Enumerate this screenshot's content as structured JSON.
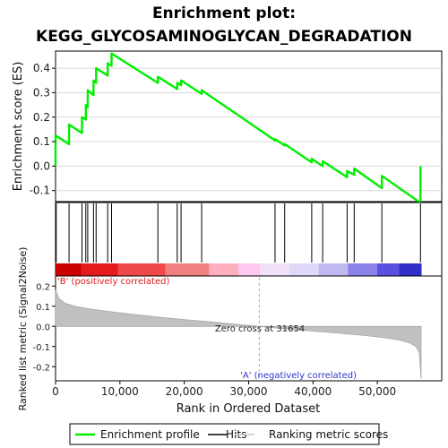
{
  "chart_data": {
    "type": "line",
    "title_line1": "Enrichment plot:",
    "title_line2": "KEGG_GLYCOSAMINOGLYCAN_DEGRADATION",
    "top_panel": {
      "ylabel": "Enrichment score (ES)",
      "ylim": [
        -0.145,
        0.47
      ],
      "y_ticks": [
        -0.1,
        0.0,
        0.1,
        0.2,
        0.3,
        0.4
      ],
      "y_tick_labels": [
        "-0.1",
        "0.0",
        "0.1",
        "0.2",
        "0.3",
        "0.4"
      ],
      "series": [
        {
          "name": "Enrichment profile",
          "color": "#00ee00",
          "x": [
            0,
            1,
            2100,
            2101,
            4100,
            4101,
            4700,
            4701,
            5000,
            5001,
            5900,
            5901,
            6300,
            6301,
            8100,
            8101,
            8700,
            8701,
            15900,
            15901,
            18900,
            18901,
            19500,
            19501,
            22700,
            22701,
            34100,
            34101,
            35600,
            35601,
            39800,
            39801,
            41500,
            41501,
            45300,
            45301,
            46400,
            46401,
            50700,
            50701,
            56700,
            56701
          ],
          "y": [
            0.0,
            0.125,
            0.09,
            0.17,
            0.135,
            0.2,
            0.19,
            0.25,
            0.24,
            0.31,
            0.29,
            0.35,
            0.34,
            0.4,
            0.37,
            0.42,
            0.41,
            0.46,
            0.34,
            0.365,
            0.315,
            0.34,
            0.33,
            0.35,
            0.295,
            0.31,
            0.105,
            0.11,
            0.085,
            0.09,
            0.015,
            0.03,
            0.0,
            0.02,
            -0.045,
            -0.02,
            -0.035,
            -0.01,
            -0.09,
            -0.04,
            -0.15,
            0.0
          ]
        }
      ],
      "hits": [
        100,
        2100,
        4100,
        4700,
        5000,
        5900,
        6300,
        8100,
        8700,
        15900,
        18900,
        19500,
        22700,
        34100,
        35600,
        39800,
        41500,
        45300,
        46400,
        50700,
        56700
      ]
    },
    "bottom_panel": {
      "ylabel_line1": "Ranked list metric (Signal2Noise)",
      "ylim": [
        -0.27,
        0.25
      ],
      "y_ticks": [
        -0.2,
        -0.1,
        0.0,
        0.1,
        0.2
      ],
      "y_tick_labels": [
        "-0.2",
        "-0.1",
        "0.0",
        "0.1",
        "0.2"
      ],
      "xlabel": "Rank in Ordered Dataset",
      "xlim": [
        0,
        60000
      ],
      "x_ticks": [
        0,
        10000,
        20000,
        30000,
        40000,
        50000
      ],
      "x_tick_labels": [
        "0",
        "10,000",
        "20,000",
        "30,000",
        "40,000",
        "50,000"
      ],
      "metric_curve": {
        "x": [
          0,
          500,
          1500,
          3000,
          5000,
          8000,
          12000,
          16000,
          20000,
          25000,
          31654,
          36000,
          40000,
          44000,
          48000,
          51000,
          53500,
          55000,
          56000,
          56500,
          56800
        ],
        "y": [
          0.18,
          0.14,
          0.115,
          0.1,
          0.088,
          0.075,
          0.06,
          0.046,
          0.034,
          0.02,
          0.0,
          -0.013,
          -0.024,
          -0.034,
          -0.045,
          -0.056,
          -0.068,
          -0.082,
          -0.1,
          -0.13,
          -0.26
        ]
      },
      "fill_color": "#c0c0c0",
      "zero_cross_rank": 31654,
      "zero_cross_text": "Zero cross at 31654",
      "pos_label": "'B' (positively correlated)",
      "neg_label": "'A' (negatively correlated)",
      "pos_color": "#e41a1c",
      "neg_color": "#3333cc"
    },
    "dataset_size": 56800,
    "legend": {
      "items": [
        {
          "label": "Enrichment profile",
          "color": "#00ee00"
        },
        {
          "label": "Hits",
          "color": "#000000"
        },
        {
          "label": "Ranking metric scores",
          "color": "#c8c8c8"
        }
      ]
    }
  }
}
